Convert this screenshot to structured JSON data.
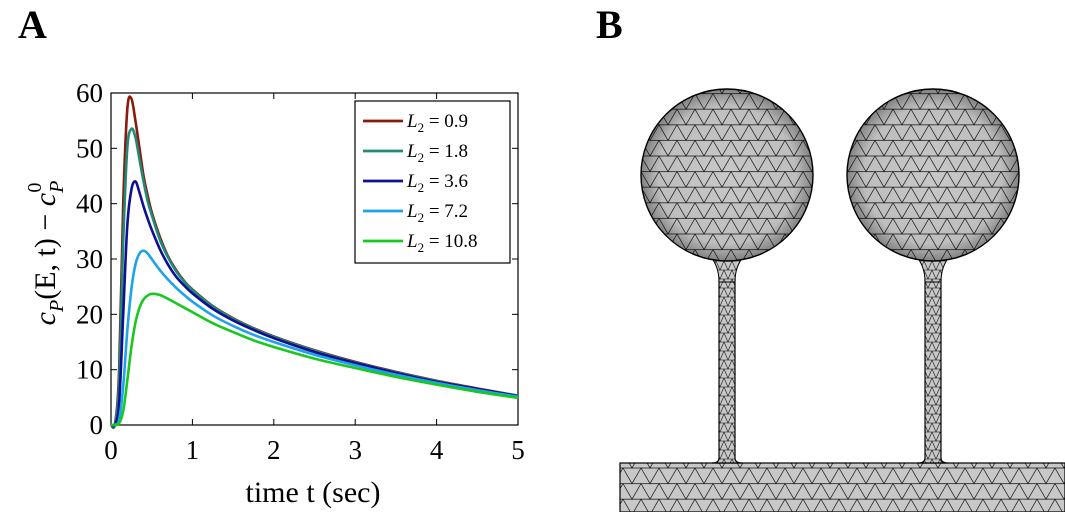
{
  "panel_labels": {
    "a": "A",
    "b": "B"
  },
  "chart_data": {
    "type": "line",
    "title": "",
    "xlabel": "time t (sec)",
    "ylabel": "c_P(E,t) − c_P^0",
    "ylabel_parts": {
      "c": "c",
      "sub_p": "P",
      "args": "(E, t) − ",
      "c2": "c",
      "sub_p2": "P",
      "sup0": "0"
    },
    "xlim": [
      0,
      5
    ],
    "ylim": [
      0,
      60
    ],
    "xticks": [
      0,
      1,
      2,
      3,
      4,
      5
    ],
    "yticks": [
      0,
      10,
      20,
      30,
      40,
      50,
      60
    ],
    "grid": false,
    "legend_position": "top-right",
    "x": [
      0,
      0.05,
      0.1,
      0.15,
      0.2,
      0.25,
      0.3,
      0.35,
      0.4,
      0.45,
      0.5,
      0.6,
      0.7,
      0.8,
      0.9,
      1.0,
      1.25,
      1.5,
      1.75,
      2.0,
      2.5,
      3.0,
      3.5,
      4.0,
      4.5,
      5.0
    ],
    "series": [
      {
        "name": "L₂ = 0.9",
        "legend_value": "0.9",
        "color": "#8b1a0e",
        "values": [
          0,
          0.3,
          10,
          40,
          57,
          59,
          55,
          50,
          45,
          41.5,
          38.5,
          34,
          30.5,
          28,
          26,
          24.5,
          21.5,
          19.3,
          17.5,
          16,
          13.5,
          11.4,
          9.6,
          8,
          6.6,
          5.3
        ]
      },
      {
        "name": "L₂ = 1.8",
        "legend_value": "1.8",
        "color": "#1f8a76",
        "values": [
          0,
          0.2,
          8,
          33,
          50,
          53.5,
          52,
          48,
          44,
          40.5,
          38,
          33.5,
          30.3,
          27.8,
          25.9,
          24.4,
          21.4,
          19.2,
          17.4,
          15.9,
          13.4,
          11.3,
          9.5,
          7.9,
          6.5,
          5.3
        ]
      },
      {
        "name": "L₂ = 3.6",
        "legend_value": "3.6",
        "color": "#0f0f96",
        "values": [
          0,
          0.1,
          4,
          20,
          36,
          42.5,
          44,
          42,
          39.5,
          37.3,
          35.3,
          31.8,
          29,
          26.8,
          25.2,
          23.8,
          21,
          18.9,
          17.2,
          15.7,
          13.2,
          11.2,
          9.4,
          7.8,
          6.5,
          5.2
        ]
      },
      {
        "name": "L₂ = 7.2",
        "legend_value": "7.2",
        "color": "#1ea3ea",
        "values": [
          0,
          0.05,
          1,
          7,
          17,
          24.5,
          29,
          31,
          31.5,
          31,
          30,
          28,
          26.3,
          24.8,
          23.5,
          22.3,
          19.8,
          17.9,
          16.3,
          15,
          12.7,
          10.8,
          9.1,
          7.6,
          6.3,
          5.1
        ]
      },
      {
        "name": "L₂ = 10.8",
        "legend_value": "10.8",
        "color": "#19c81e",
        "values": [
          0,
          0,
          0.3,
          2.5,
          8,
          14,
          18.5,
          21.2,
          22.7,
          23.4,
          23.7,
          23.5,
          22.8,
          22,
          21.2,
          20.4,
          18.4,
          16.8,
          15.3,
          14.1,
          12,
          10.3,
          8.7,
          7.3,
          6,
          4.9
        ]
      }
    ]
  },
  "mesh_figure": {
    "fill_color": "#c8c8c8",
    "line_color": "#000000",
    "spines": 2
  }
}
